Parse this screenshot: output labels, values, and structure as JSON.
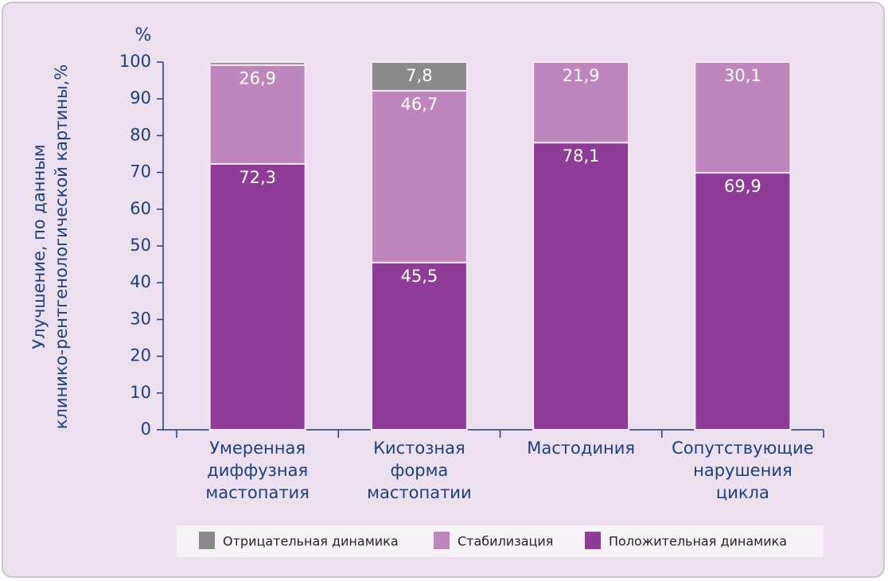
{
  "chart_data": {
    "type": "stacked_bar",
    "y_label": [
      "Улучшение, по данным",
      "клинико-рентгенологической картины,%"
    ],
    "y_unit": "%",
    "categories": [
      "Умеренная диффузная мастопатия",
      "Кистозная форма мастопатии",
      "Мастодиния",
      "Сопутствующие нарушения цикла"
    ],
    "series": [
      {
        "name": "Отрицательная динамика",
        "color": "#8a8a8a",
        "values": [
          0.8,
          7.8,
          null,
          null
        ],
        "value_labels": [
          null,
          "7,8",
          null,
          null
        ]
      },
      {
        "name": "Стабилизация",
        "color": "#bf86bd",
        "values": [
          26.9,
          46.7,
          21.9,
          30.1
        ],
        "value_labels": [
          "26,9",
          "46,7",
          "21,9",
          "30,1"
        ]
      },
      {
        "name": "Положительная динамика",
        "color": "#8e3c98",
        "values": [
          72.3,
          45.5,
          78.1,
          69.9
        ],
        "value_labels": [
          "72,3",
          "45,5",
          "78,1",
          "69,9"
        ]
      }
    ],
    "ylim": [
      0,
      100
    ],
    "yticks": [
      0,
      10,
      20,
      30,
      40,
      50,
      60,
      70,
      80,
      90,
      100
    ]
  }
}
